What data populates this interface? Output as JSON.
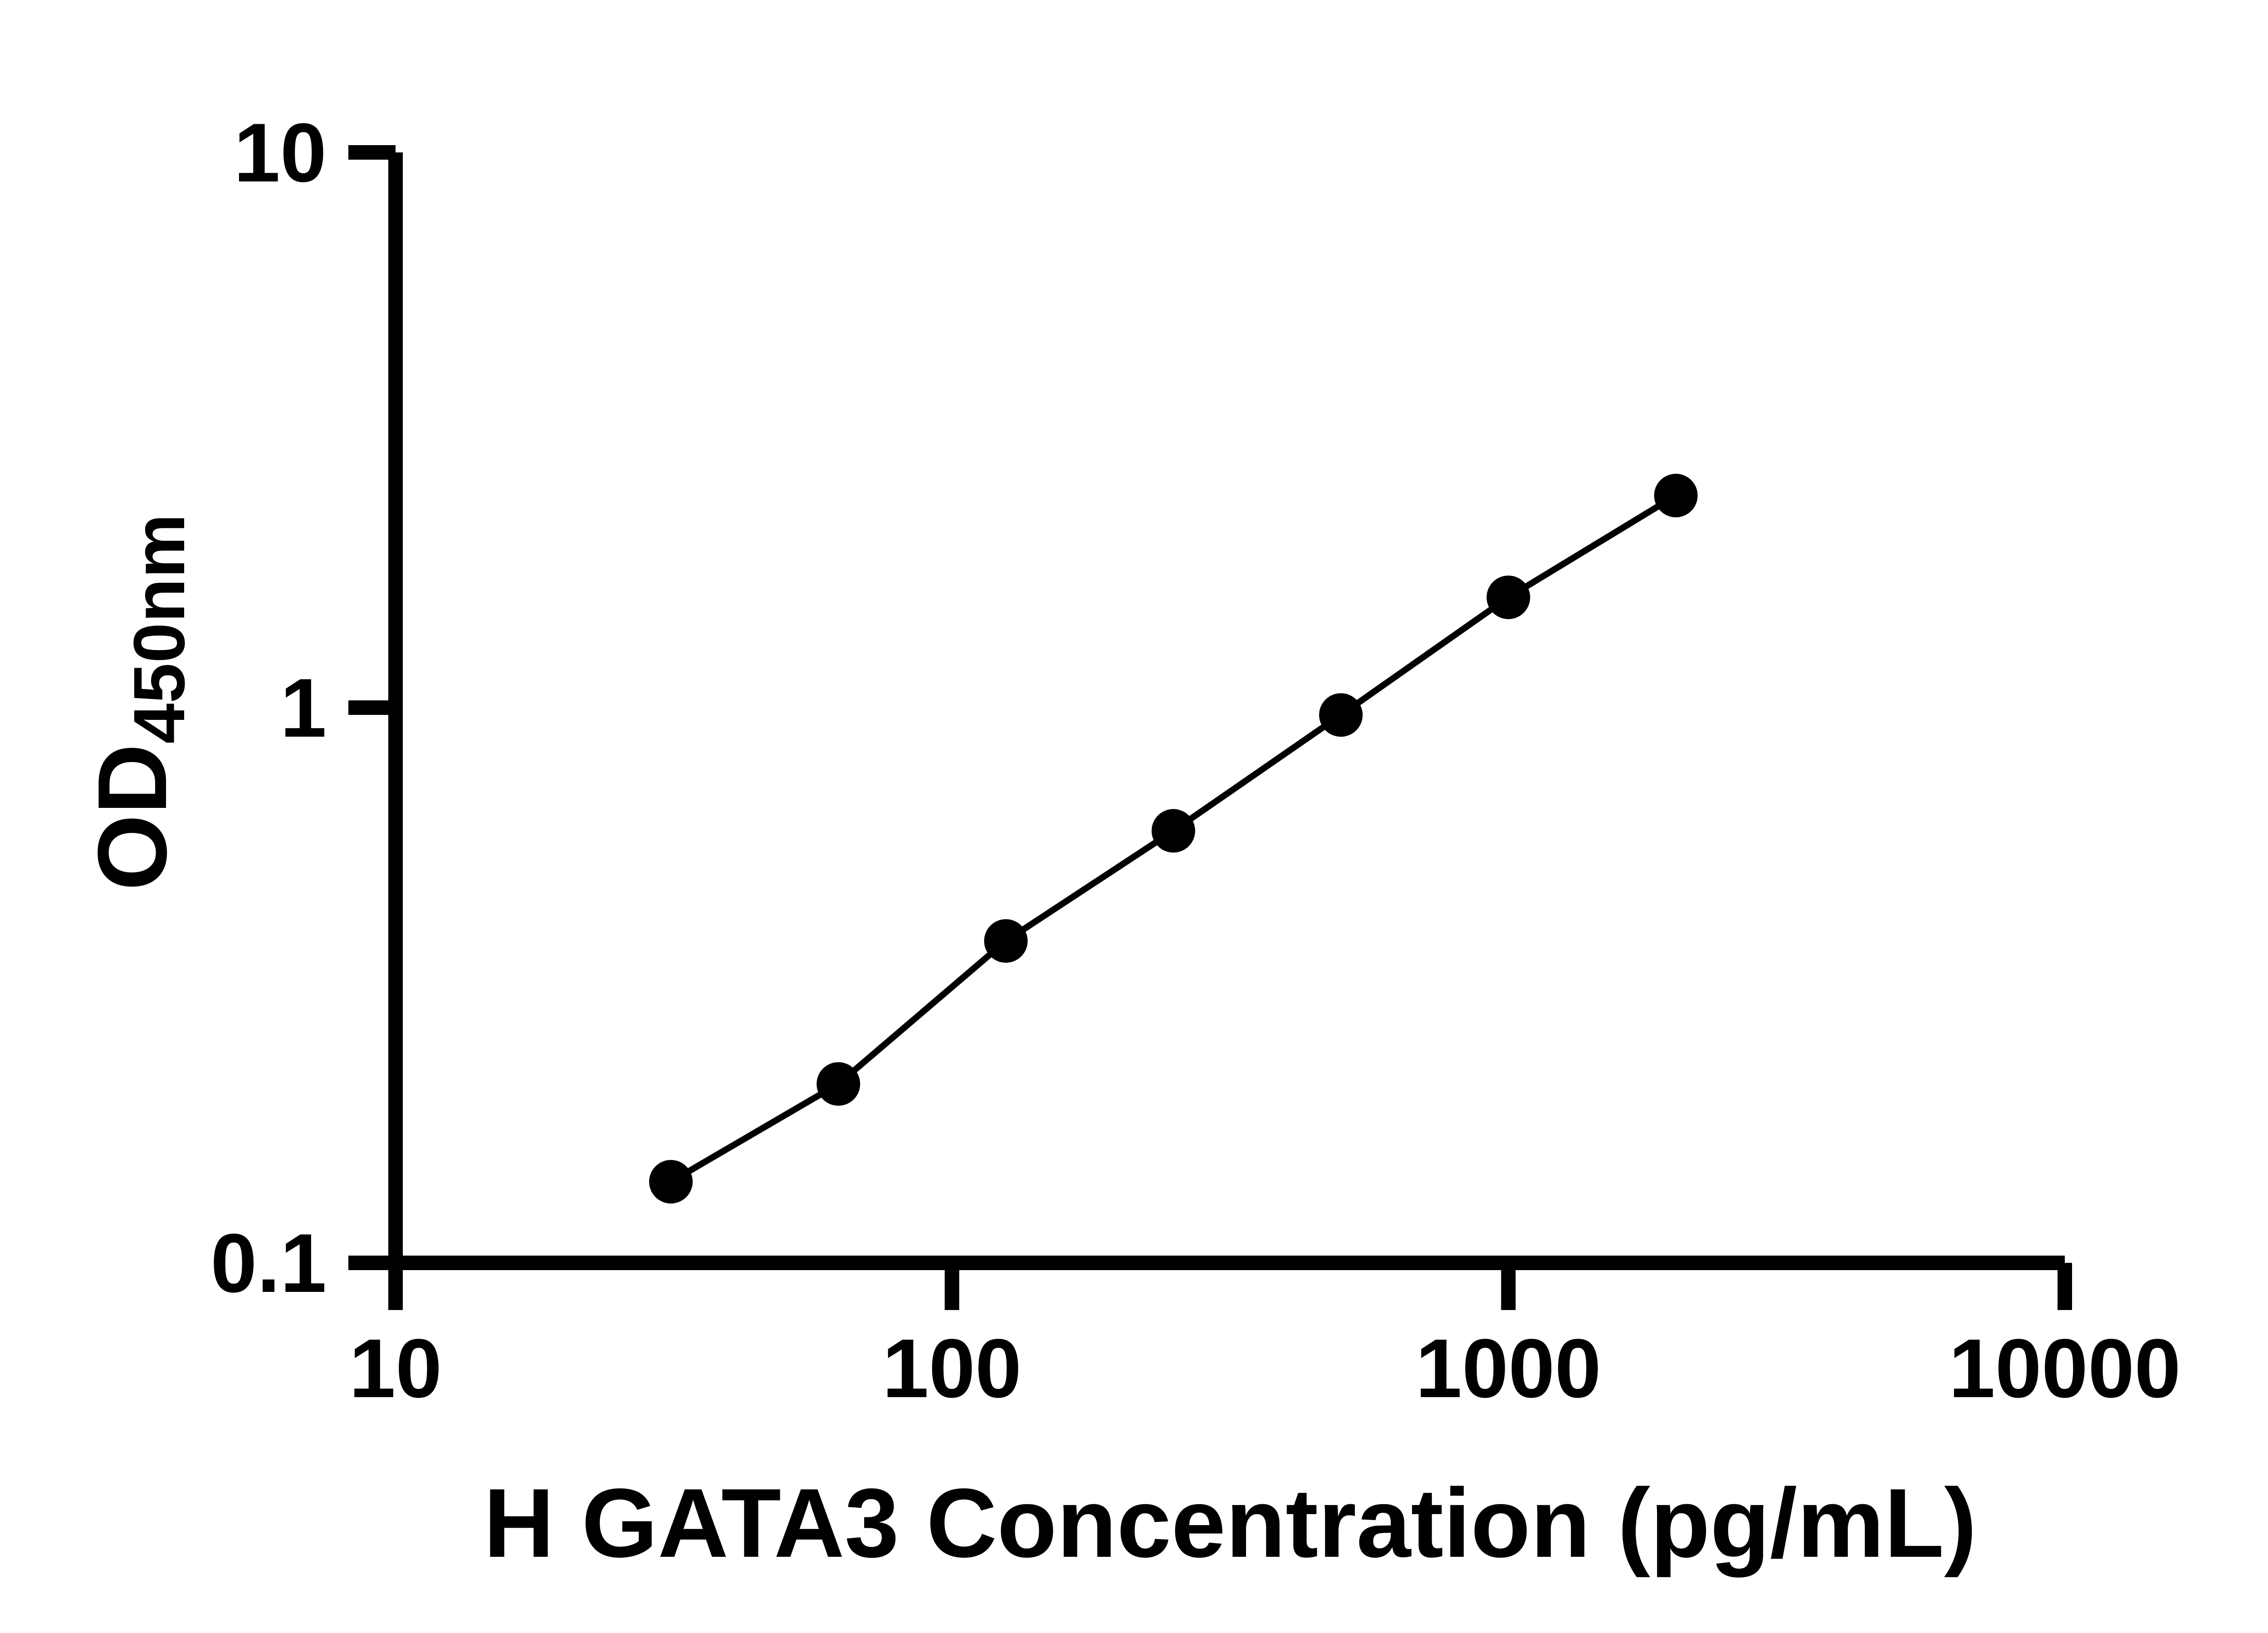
{
  "chart_data": {
    "type": "scatter",
    "title": "",
    "xlabel": "H GATA3 Concentration (pg/mL)",
    "ylabel_main": "OD",
    "ylabel_sub": "450nm",
    "x_scale": "log",
    "y_scale": "log",
    "xlim": [
      10,
      10000
    ],
    "ylim": [
      0.1,
      10
    ],
    "grid": false,
    "legend": "none",
    "axis_color": "#000000",
    "line_color": "#000000",
    "marker_color": "#000000",
    "background": "#ffffff",
    "x_ticks": [
      {
        "value": 10,
        "label": "10"
      },
      {
        "value": 100,
        "label": "100"
      },
      {
        "value": 1000,
        "label": "1000"
      },
      {
        "value": 10000,
        "label": "10000"
      }
    ],
    "y_ticks": [
      {
        "value": 0.1,
        "label": "0.1"
      },
      {
        "value": 1,
        "label": "1"
      },
      {
        "value": 10,
        "label": "10"
      }
    ],
    "series": [
      {
        "name": "standard-curve",
        "x": [
          31.25,
          62.5,
          125,
          250,
          500,
          1000,
          2000
        ],
        "y": [
          0.14,
          0.21,
          0.38,
          0.6,
          0.97,
          1.58,
          2.41
        ]
      }
    ]
  }
}
